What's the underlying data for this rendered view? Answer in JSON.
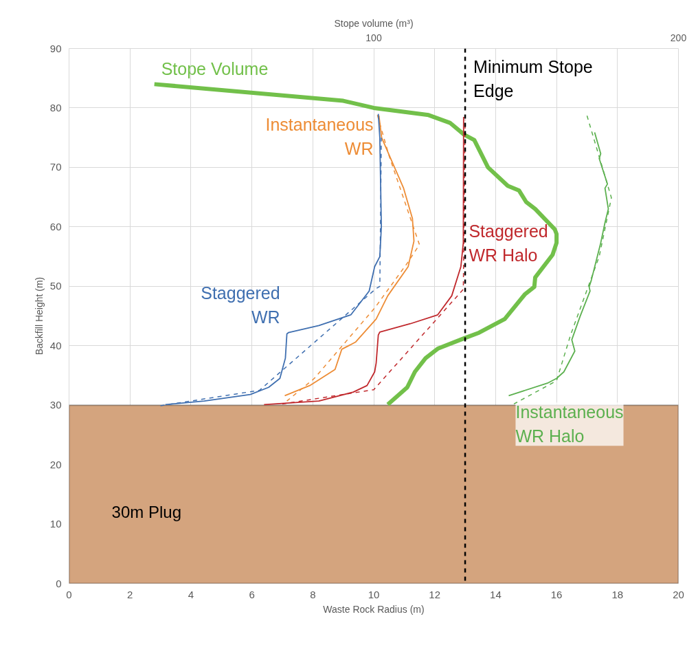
{
  "chart_data": {
    "type": "line",
    "xlabel": "Waste Rock Radius (m)",
    "ylabel": "Backfill Height (m)",
    "x2label": "Stope volume (m³)",
    "xlim": [
      0,
      20
    ],
    "xticks": [
      0,
      2,
      4,
      6,
      8,
      10,
      12,
      14,
      16,
      18,
      20
    ],
    "ylim": [
      0,
      90
    ],
    "yticks": [
      0,
      10,
      20,
      30,
      40,
      50,
      60,
      70,
      80,
      90
    ],
    "x2lim": [
      0,
      200
    ],
    "x2ticks": [
      100,
      200
    ],
    "grid": true,
    "series": [
      {
        "name": "Stope Volume",
        "color": "#72c04a",
        "axis": "x2",
        "line_style": "solid",
        "x": [
          28,
          90,
          100,
          118,
          125,
          129.7,
          133,
          137.5,
          144,
          147.7,
          150,
          153,
          159.4,
          160,
          160,
          158.7,
          153,
          152.7,
          149.7,
          143,
          134.6,
          129.4,
          121,
          117,
          113.5,
          111,
          104.6
        ],
        "values": [
          84,
          81.2,
          80,
          78.8,
          77.5,
          75.5,
          74.6,
          70,
          66.9,
          66.1,
          64.2,
          63,
          59.6,
          58.8,
          57.3,
          55.3,
          51.5,
          49.9,
          48.7,
          44.5,
          42.2,
          41.2,
          39.5,
          37.9,
          35.6,
          33,
          30.1
        ]
      },
      {
        "name": "Instantaneous\nWR",
        "color": "#ed8c35",
        "line_style": "solid",
        "x": [
          10.17,
          10.26,
          10.53,
          10.98,
          11.27,
          11.32,
          11.13,
          10.46,
          10.08,
          9.4,
          8.95,
          8.73,
          7.9,
          7.08
        ],
        "values": [
          78.7,
          75,
          71.8,
          66.5,
          61.4,
          57.6,
          53.3,
          48.4,
          44.5,
          40.6,
          39.4,
          36,
          33.3,
          31.6
        ]
      },
      {
        "color": "#ed8c35",
        "line_style": "dashed",
        "x": [
          10.12,
          10.5,
          11.5,
          11.13,
          10.04,
          8.05,
          7.15
        ],
        "values": [
          78.8,
          72,
          57,
          54.1,
          46.4,
          34.5,
          30.7
        ]
      },
      {
        "name": "Staggered\nWR",
        "color": "#3f6fb0",
        "line_style": "solid",
        "x": [
          10.15,
          10.2,
          10.25,
          10.2,
          10.03,
          9.85,
          9.25,
          8.2,
          7.2,
          7.15,
          7.1,
          6.92,
          6.55,
          5.95,
          4.44,
          3.16
        ],
        "values": [
          79,
          75,
          60,
          55,
          53.3,
          49.2,
          45.2,
          43.4,
          42.2,
          42,
          37.9,
          34.5,
          33,
          31.8,
          30.7,
          30.1
        ]
      },
      {
        "color": "#3f6fb0",
        "line_style": "dashed",
        "x": [
          3.0,
          6.25,
          10.05,
          10.2,
          10.25
        ],
        "values": [
          29.9,
          32.5,
          49.5,
          50,
          75
        ]
      },
      {
        "name": "Staggered\nWR Halo",
        "color": "#c0282c",
        "line_style": "solid",
        "x": [
          12.95,
          12.94,
          12.86,
          12.56,
          12.1,
          11.2,
          10.2,
          10.15,
          10.08,
          10.03,
          9.78,
          9.33,
          8.2,
          6.4
        ],
        "values": [
          78.5,
          57.3,
          53.3,
          48.4,
          45.2,
          43.7,
          42.3,
          41.8,
          37.1,
          35.6,
          33.3,
          32.2,
          30.7,
          30.1
        ]
      },
      {
        "color": "#c0282c",
        "line_style": "dashed",
        "x": [
          7.0,
          10.0,
          12.94,
          13.0
        ],
        "values": [
          30.2,
          32.6,
          49.5,
          78
        ]
      },
      {
        "name": "Instantaneous\nWR Halo",
        "color": "#5cb04f",
        "line_style": "solid",
        "x": [
          17.25,
          17.45,
          17.4,
          17.67,
          17.59,
          17.7,
          17.59,
          17.45,
          17.14,
          17.07,
          17.1,
          16.77,
          16.5,
          16.6,
          16.24,
          16.0,
          15.7,
          14.43
        ],
        "values": [
          75.9,
          72.3,
          71.5,
          67.2,
          66.5,
          63,
          60.7,
          57.3,
          51,
          49.9,
          49.2,
          44.9,
          41,
          39.1,
          35.6,
          34.5,
          33.7,
          31.6
        ]
      },
      {
        "color": "#5cb04f",
        "line_style": "dashed",
        "x": [
          17.0,
          17.8,
          17.4,
          16.46,
          16.0,
          14.6
        ],
        "values": [
          78.7,
          64.9,
          55,
          41.8,
          34.1,
          30.2
        ]
      }
    ],
    "ref_lines": [
      {
        "axis": "x",
        "value": 13,
        "label": "Minimum Stope\nEdge",
        "color": "#000000",
        "line_style": "dashed"
      }
    ],
    "bands": [
      {
        "axis": "y",
        "from": 0,
        "to": 30,
        "label": "30m Plug",
        "color": "#d4a47e"
      }
    ]
  }
}
